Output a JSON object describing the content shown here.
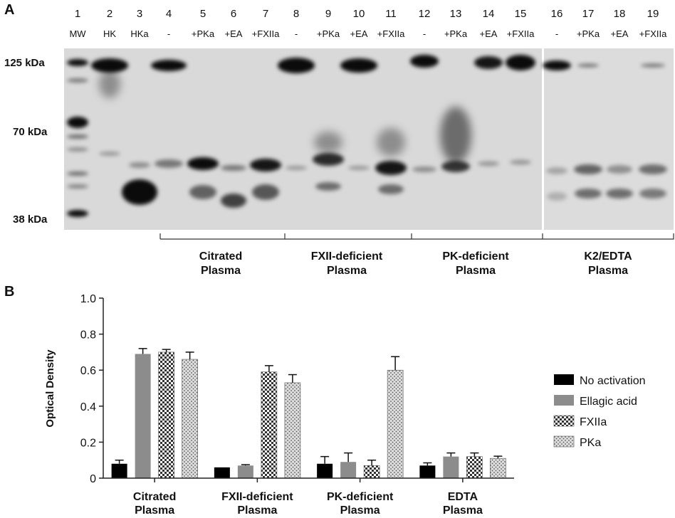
{
  "panel_a": {
    "label": "A",
    "lane_numbers": [
      "1",
      "2",
      "3",
      "4",
      "5",
      "6",
      "7",
      "8",
      "9",
      "10",
      "11",
      "12",
      "13",
      "14",
      "15",
      "16",
      "17",
      "18",
      "19"
    ],
    "lane_labels": [
      "MW",
      "HK",
      "HKa",
      "-",
      "+PKa",
      "+EA",
      "+FXIIa",
      "-",
      "+PKa",
      "+EA",
      "+FXIIa",
      "-",
      "+PKa",
      "+EA",
      "+FXIIa",
      "-",
      "+PKa",
      "+EA",
      "+FXIIa"
    ],
    "mw_markers": [
      "125 kDa",
      "70 kDa",
      "38 kDa"
    ],
    "groups": [
      {
        "line1": "Citrated",
        "line2": "Plasma"
      },
      {
        "line1": "FXII-deficient",
        "line2": "Plasma"
      },
      {
        "line1": "PK-deficient",
        "line2": "Plasma"
      },
      {
        "line1": "K2/EDTA",
        "line2": "Plasma"
      }
    ]
  },
  "panel_b": {
    "label": "B",
    "legend": [
      {
        "name": "No activation",
        "color": "#000000",
        "pattern": "solid"
      },
      {
        "name": "Ellagic acid",
        "color": "#8c8c8c",
        "pattern": "solid"
      },
      {
        "name": "FXIIa",
        "color": "#333333",
        "pattern": "checker"
      },
      {
        "name": "PKa",
        "color": "#cfcfcf",
        "pattern": "dots"
      }
    ]
  },
  "chart_data": {
    "type": "bar",
    "title": "",
    "xlabel": "",
    "ylabel": "Optical Density",
    "ylim": [
      0,
      1.0
    ],
    "yticks": [
      "0",
      "0.2",
      "0.4",
      "0.6",
      "0.8",
      "1.0"
    ],
    "categories": [
      {
        "line1": "Citrated",
        "line2": "Plasma"
      },
      {
        "line1": "FXII-deficient",
        "line2": "Plasma"
      },
      {
        "line1": "PK-deficient",
        "line2": "Plasma"
      },
      {
        "line1": "EDTA",
        "line2": "Plasma"
      }
    ],
    "series": [
      {
        "name": "No activation",
        "values": [
          0.08,
          0.06,
          0.08,
          0.07
        ],
        "errors": [
          0.02,
          0.0,
          0.04,
          0.015
        ]
      },
      {
        "name": "Ellagic acid",
        "values": [
          0.69,
          0.07,
          0.09,
          0.12
        ],
        "errors": [
          0.03,
          0.005,
          0.05,
          0.02
        ]
      },
      {
        "name": "FXIIa",
        "values": [
          0.7,
          0.59,
          0.07,
          0.12
        ],
        "errors": [
          0.015,
          0.035,
          0.03,
          0.02
        ]
      },
      {
        "name": "PKa",
        "values": [
          0.66,
          0.53,
          0.6,
          0.11
        ],
        "errors": [
          0.04,
          0.045,
          0.075,
          0.012
        ]
      }
    ],
    "legend_position": "right"
  }
}
